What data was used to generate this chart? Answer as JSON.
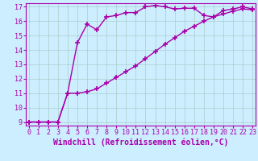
{
  "xlabel": "Windchill (Refroidissement éolien,°C)",
  "bg_color": "#cceeff",
  "line_color": "#aa00aa",
  "grid_color": "#aacccc",
  "xmin": 0,
  "xmax": 23,
  "ymin": 9,
  "ymax": 17,
  "curve1_x": [
    0,
    1,
    2,
    3,
    4,
    5,
    6,
    7,
    8,
    9,
    10,
    11,
    12,
    13,
    14,
    15,
    16,
    17,
    18,
    19,
    20,
    21,
    22,
    23
  ],
  "curve1_y": [
    9,
    9,
    9,
    9,
    11,
    14.5,
    15.8,
    15.4,
    16.3,
    16.4,
    16.6,
    16.6,
    17.0,
    17.1,
    17.0,
    16.85,
    16.9,
    16.9,
    16.4,
    16.3,
    16.75,
    16.85,
    17.0,
    16.85
  ],
  "curve2_x": [
    0,
    1,
    2,
    3,
    4,
    5,
    6,
    7,
    8,
    9,
    10,
    11,
    12,
    13,
    14,
    15,
    16,
    17,
    18,
    19,
    20,
    21,
    22,
    23
  ],
  "curve2_y": [
    9,
    9,
    9,
    9,
    11,
    11,
    11.1,
    11.3,
    11.7,
    12.1,
    12.5,
    12.9,
    13.4,
    13.9,
    14.4,
    14.85,
    15.3,
    15.65,
    16.0,
    16.3,
    16.5,
    16.7,
    16.85,
    16.8
  ],
  "marker": "+",
  "markersize": 4,
  "markeredgewidth": 1.2,
  "linewidth": 1.0,
  "xticks": [
    0,
    1,
    2,
    3,
    4,
    5,
    6,
    7,
    8,
    9,
    10,
    11,
    12,
    13,
    14,
    15,
    16,
    17,
    18,
    19,
    20,
    21,
    22,
    23
  ],
  "yticks": [
    9,
    10,
    11,
    12,
    13,
    14,
    15,
    16,
    17
  ],
  "tick_fontsize": 6,
  "label_fontsize": 7
}
